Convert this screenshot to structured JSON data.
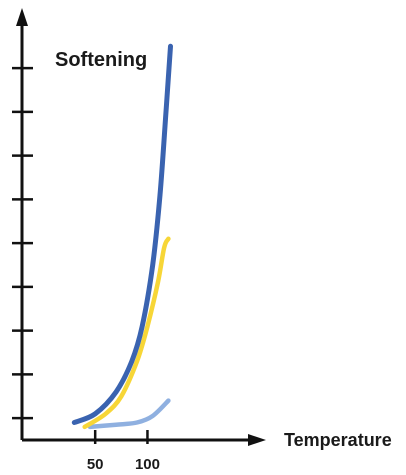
{
  "chart_data": {
    "type": "line",
    "ylabel": "Softening",
    "xlabel": "Temperature",
    "x_ticks": [
      50,
      100
    ],
    "x_tick_labels": [
      "50",
      "100"
    ],
    "xlim": [
      -20,
      200
    ],
    "ylim": [
      0,
      9.6
    ],
    "y_tick_values": [
      0.5,
      1.5,
      2.5,
      3.5,
      4.5,
      5.5,
      6.5,
      7.5,
      8.5
    ],
    "grid": false,
    "legend": "none",
    "series": [
      {
        "color": "#3a63b0",
        "points": [
          [
            30,
            0.4
          ],
          [
            50,
            0.6
          ],
          [
            70,
            1.1
          ],
          [
            85,
            1.8
          ],
          [
            95,
            2.6
          ],
          [
            105,
            4.0
          ],
          [
            112,
            5.6
          ],
          [
            118,
            7.6
          ],
          [
            122,
            9.0
          ]
        ]
      },
      {
        "color": "#f7d637",
        "points": [
          [
            40,
            0.3
          ],
          [
            60,
            0.6
          ],
          [
            75,
            1.0
          ],
          [
            90,
            1.8
          ],
          [
            100,
            2.6
          ],
          [
            110,
            3.6
          ],
          [
            116,
            4.4
          ],
          [
            120,
            4.6
          ]
        ]
      },
      {
        "color": "#8fb0e0",
        "points": [
          [
            45,
            0.3
          ],
          [
            70,
            0.35
          ],
          [
            90,
            0.4
          ],
          [
            105,
            0.55
          ],
          [
            120,
            0.9
          ]
        ]
      }
    ]
  }
}
